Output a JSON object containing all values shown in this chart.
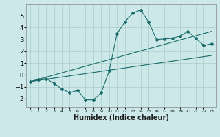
{
  "title": "",
  "xlabel": "Humidex (Indice chaleur)",
  "ylabel": "",
  "bg_color": "#cce8e8",
  "line_color": "#1a6b6b",
  "grid_color": "#aacccc",
  "xlim": [
    -0.5,
    23.5
  ],
  "ylim": [
    -2.7,
    6.0
  ],
  "yticks": [
    -2,
    -1,
    0,
    1,
    2,
    3,
    4,
    5
  ],
  "xticks": [
    0,
    1,
    2,
    3,
    4,
    5,
    6,
    7,
    8,
    9,
    10,
    11,
    12,
    13,
    14,
    15,
    16,
    17,
    18,
    19,
    20,
    21,
    22,
    23
  ],
  "curve1_x": [
    0,
    1,
    2,
    3,
    4,
    5,
    6,
    7,
    8,
    9,
    10,
    11,
    12,
    13,
    14,
    15,
    16,
    17,
    18,
    19,
    20,
    21,
    22,
    23
  ],
  "curve1_y": [
    -0.55,
    -0.4,
    -0.3,
    -0.7,
    -1.2,
    -1.5,
    -1.3,
    -2.1,
    -2.1,
    -1.5,
    0.35,
    3.5,
    4.5,
    5.25,
    5.5,
    4.5,
    3.0,
    3.05,
    3.1,
    3.3,
    3.7,
    3.1,
    2.5,
    2.65
  ],
  "curve2_x": [
    0,
    23
  ],
  "curve2_y": [
    -0.55,
    1.65
  ],
  "curve3_x": [
    0,
    23
  ],
  "curve3_y": [
    -0.55,
    3.7
  ],
  "xlabel_fontsize": 7,
  "ytick_fontsize": 6,
  "xtick_fontsize": 4.5
}
